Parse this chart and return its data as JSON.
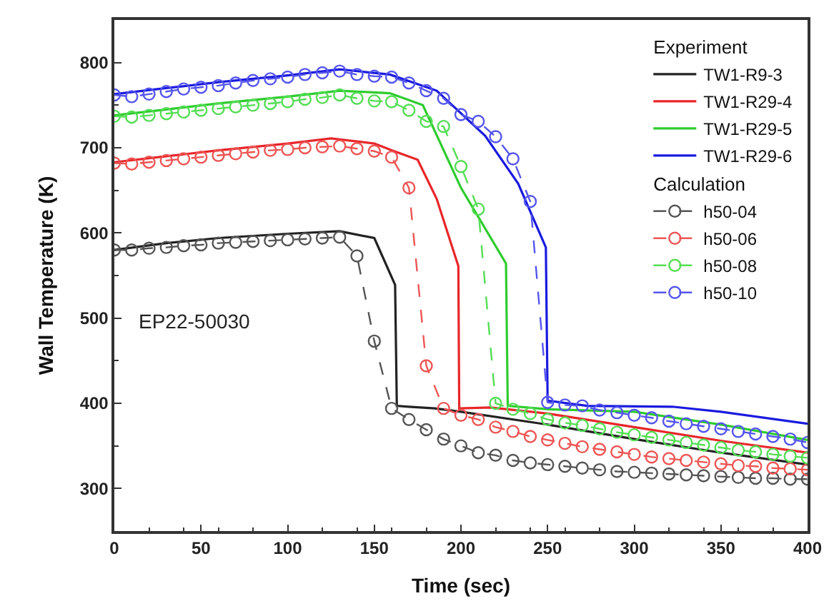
{
  "chart_data": {
    "type": "line",
    "xlabel": "Time (sec)",
    "ylabel": "Wall Temperature (K)",
    "xlim": [
      0,
      400
    ],
    "ylim": [
      250,
      850
    ],
    "xticks": [
      0,
      50,
      100,
      150,
      200,
      250,
      300,
      350,
      400
    ],
    "yticks": [
      300,
      400,
      500,
      600,
      700,
      800
    ],
    "legend": "top right",
    "annotations": [
      "Experiment",
      "Calculation",
      "EP22-50030"
    ],
    "series": [
      {
        "name": "TW1-R9-3",
        "color": "#222222",
        "line_style": "solid",
        "marker": "none",
        "x": [
          0,
          30,
          60,
          100,
          130,
          150,
          162,
          163,
          170,
          185,
          200,
          250,
          300,
          350,
          400
        ],
        "values": [
          580,
          588,
          594,
          599,
          602,
          594,
          539,
          397,
          396,
          394,
          390,
          375,
          358,
          342,
          328
        ]
      },
      {
        "name": "TW1-R29-4",
        "color": "#e8262a",
        "line_style": "solid",
        "marker": "none",
        "x": [
          0,
          30,
          60,
          100,
          125,
          150,
          160,
          175,
          186,
          198.5,
          199,
          217,
          250,
          300,
          350,
          400
        ],
        "values": [
          683,
          690,
          697,
          705,
          711,
          705,
          697,
          686,
          640,
          561,
          394,
          395,
          388,
          372,
          356,
          342
        ]
      },
      {
        "name": "TW1-R29-5",
        "color": "#2ecc2e",
        "line_style": "solid",
        "marker": "none",
        "x": [
          0,
          30,
          60,
          100,
          130,
          159,
          178,
          200,
          226,
          227,
          250,
          300,
          350,
          400
        ],
        "values": [
          738,
          745,
          752,
          760,
          767,
          764,
          750,
          653,
          564,
          397,
          393,
          390,
          375,
          357
        ]
      },
      {
        "name": "TW1-R29-6",
        "color": "#1a1adf",
        "line_style": "solid",
        "marker": "none",
        "x": [
          0,
          30,
          60,
          100,
          130,
          159,
          186,
          214,
          233,
          249,
          250,
          273,
          322,
          350,
          400
        ],
        "values": [
          763,
          770,
          777,
          785,
          792,
          786,
          767,
          714,
          658,
          583,
          403,
          397,
          396,
          390,
          376
        ]
      },
      {
        "name": "h50-04",
        "color": "#555555",
        "line_style": "dashed",
        "marker": "circle",
        "x": [
          0,
          10,
          20,
          30,
          40,
          50,
          60,
          70,
          80,
          90,
          100,
          110,
          120,
          130,
          140,
          150,
          160,
          170,
          180,
          190,
          200,
          210,
          220,
          230,
          240,
          250,
          260,
          270,
          280,
          290,
          300,
          310,
          320,
          330,
          340,
          350,
          360,
          370,
          380,
          390,
          400
        ],
        "values": [
          580,
          580,
          582,
          583,
          585,
          586,
          588,
          589,
          590,
          591,
          592,
          593,
          594,
          595,
          573,
          473,
          394,
          381,
          369,
          358,
          350,
          342,
          339,
          333,
          330,
          328,
          326,
          324,
          322,
          320,
          319,
          318,
          317,
          316,
          315,
          314,
          313,
          312,
          312,
          311,
          311
        ]
      },
      {
        "name": "h50-06",
        "color": "#ee5555",
        "line_style": "dashed",
        "marker": "circle",
        "x": [
          0,
          10,
          20,
          30,
          40,
          50,
          60,
          70,
          80,
          90,
          100,
          110,
          120,
          130,
          140,
          150,
          160,
          170,
          180,
          190,
          200,
          210,
          220,
          230,
          240,
          250,
          260,
          270,
          280,
          290,
          300,
          310,
          320,
          330,
          340,
          350,
          360,
          370,
          380,
          390,
          400
        ],
        "values": [
          682,
          681,
          683,
          685,
          687,
          689,
          691,
          693,
          695,
          697,
          698,
          700,
          701,
          702,
          699,
          696,
          689,
          653,
          444,
          394,
          386,
          381,
          372,
          367,
          361,
          357,
          353,
          349,
          346,
          343,
          340,
          337,
          335,
          333,
          331,
          329,
          327,
          326,
          324,
          323,
          322
        ]
      },
      {
        "name": "h50-08",
        "color": "#55dd55",
        "line_style": "dashed",
        "marker": "circle",
        "x": [
          0,
          10,
          20,
          30,
          40,
          50,
          60,
          70,
          80,
          90,
          100,
          110,
          120,
          130,
          140,
          150,
          160,
          170,
          180,
          190,
          200,
          210,
          220,
          230,
          240,
          250,
          260,
          270,
          280,
          290,
          300,
          310,
          320,
          330,
          340,
          350,
          360,
          370,
          380,
          390,
          400
        ],
        "values": [
          737,
          736,
          738,
          740,
          742,
          744,
          746,
          748,
          750,
          752,
          754,
          757,
          759,
          762,
          758,
          755,
          754,
          744,
          731,
          725,
          678,
          628,
          400,
          393,
          388,
          381,
          377,
          374,
          370,
          366,
          363,
          360,
          357,
          354,
          351,
          348,
          345,
          343,
          340,
          338,
          336
        ]
      },
      {
        "name": "h50-10",
        "color": "#5555ee",
        "line_style": "dashed",
        "marker": "circle",
        "x": [
          0,
          10,
          20,
          30,
          40,
          50,
          60,
          70,
          80,
          90,
          100,
          110,
          120,
          130,
          140,
          150,
          160,
          170,
          180,
          190,
          200,
          210,
          220,
          230,
          240,
          250,
          260,
          270,
          280,
          290,
          300,
          310,
          320,
          330,
          340,
          350,
          360,
          370,
          380,
          390,
          400
        ],
        "values": [
          762,
          760,
          763,
          766,
          769,
          771,
          773,
          776,
          779,
          781,
          783,
          786,
          788,
          790,
          786,
          784,
          783,
          776,
          767,
          758,
          739,
          731,
          713,
          687,
          637,
          401,
          398,
          397,
          392,
          389,
          386,
          383,
          379,
          376,
          373,
          370,
          367,
          364,
          361,
          358,
          354
        ]
      }
    ]
  }
}
